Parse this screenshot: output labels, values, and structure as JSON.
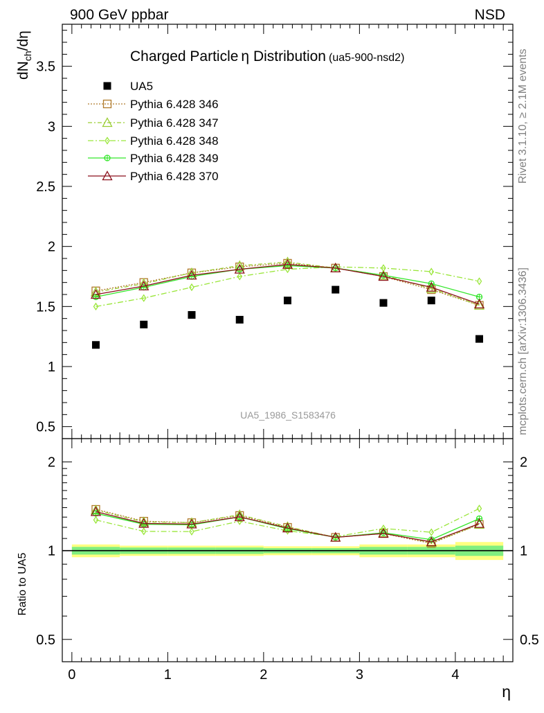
{
  "header": {
    "left": "900 GeV ppbar",
    "right": "NSD"
  },
  "side_labels": {
    "rivet": "Rivet 3.1.10, ≥ 2.1M events",
    "mcplots": "mcplots.cern.ch [arXiv:1306.3436]"
  },
  "colors": {
    "data": "#000000",
    "p346": "#b07a2a",
    "p347": "#9acd32",
    "p348": "#9ae63a",
    "p349": "#33e62a",
    "p370": "#8b0f1a",
    "band_outer": "#ffff80",
    "band_inner": "#80ee80"
  },
  "chart_data": {
    "type": "line",
    "title_main": "Charged Particle",
    "title_eta": "η",
    "title_rest": " Distribution",
    "title_sub": "(ua5-900-nsd2)",
    "watermark": "UA5_1986_S1583476",
    "y_label_main": "dN",
    "y_label_sub": "ch",
    "y_label_rest": "/dη",
    "ratio_ylabel": "Ratio to UA5",
    "xlabel": "η",
    "xlim": [
      -0.1,
      4.6
    ],
    "ylim_main": [
      0.4,
      3.85
    ],
    "ylim_ratio_log": [
      0.42,
      2.4
    ],
    "x_ticks": [
      "0",
      "1",
      "2",
      "3",
      "4"
    ],
    "y_ticks_main": [
      "0.5",
      "1",
      "1.5",
      "2",
      "2.5",
      "3",
      "3.5"
    ],
    "y_ticks_ratio": [
      "0.5",
      "1",
      "2"
    ],
    "x": [
      0.25,
      0.75,
      1.25,
      1.75,
      2.25,
      2.75,
      3.25,
      3.75,
      4.25
    ],
    "data_series": {
      "name": "UA5",
      "values": [
        1.18,
        1.35,
        1.43,
        1.39,
        1.55,
        1.64,
        1.53,
        1.55,
        1.23
      ],
      "bin_edges": [
        0.0,
        0.5,
        1.0,
        1.5,
        2.0,
        2.5,
        3.0,
        3.5,
        4.0,
        4.5
      ],
      "rel_err_outer": [
        0.05,
        0.04,
        0.04,
        0.04,
        0.035,
        0.035,
        0.05,
        0.05,
        0.07
      ],
      "rel_err_inner": [
        0.03,
        0.025,
        0.025,
        0.025,
        0.02,
        0.02,
        0.03,
        0.03,
        0.04
      ]
    },
    "series": [
      {
        "name": "Pythia 6.428 346",
        "color_key": "p346",
        "marker": "square",
        "dash": "2,2",
        "values": [
          1.63,
          1.7,
          1.78,
          1.83,
          1.86,
          1.82,
          1.75,
          1.64,
          1.51
        ]
      },
      {
        "name": "Pythia 6.428 347",
        "color_key": "p347",
        "marker": "triangle",
        "dash": "6,3,2,3",
        "values": [
          1.62,
          1.69,
          1.78,
          1.84,
          1.87,
          1.82,
          1.76,
          1.65,
          1.51
        ]
      },
      {
        "name": "Pythia 6.428 348",
        "color_key": "p348",
        "marker": "diamond",
        "dash": "8,3,2,3",
        "values": [
          1.5,
          1.57,
          1.66,
          1.75,
          1.81,
          1.83,
          1.82,
          1.79,
          1.71
        ]
      },
      {
        "name": "Pythia 6.428 349",
        "color_key": "p349",
        "marker": "circlecross",
        "dash": "",
        "values": [
          1.58,
          1.66,
          1.75,
          1.81,
          1.84,
          1.82,
          1.76,
          1.69,
          1.58
        ]
      },
      {
        "name": "Pythia 6.428 370",
        "color_key": "p370",
        "marker": "triangle",
        "dash": "",
        "values": [
          1.6,
          1.67,
          1.76,
          1.81,
          1.85,
          1.82,
          1.75,
          1.66,
          1.52
        ]
      }
    ]
  }
}
